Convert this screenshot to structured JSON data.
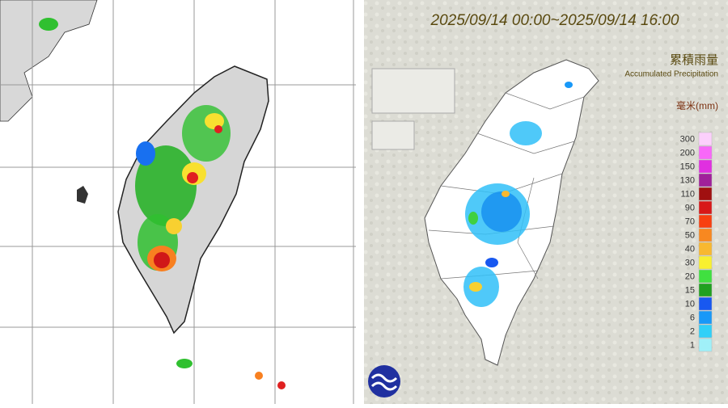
{
  "right_panel": {
    "title": "2025/09/14 00:00~2025/09/14 16:00",
    "legend_title": "累積雨量",
    "legend_subtitle": "Accumulated Precipitation",
    "unit": "毫米(mm)",
    "legend": [
      {
        "label": "300",
        "color": "#fcd0fc"
      },
      {
        "label": "200",
        "color": "#f868f8"
      },
      {
        "label": "150",
        "color": "#e030e0"
      },
      {
        "label": "130",
        "color": "#a0209a"
      },
      {
        "label": "110",
        "color": "#a01010"
      },
      {
        "label": "90",
        "color": "#d81818"
      },
      {
        "label": "70",
        "color": "#f84010"
      },
      {
        "label": "50",
        "color": "#f88820"
      },
      {
        "label": "40",
        "color": "#f8b830"
      },
      {
        "label": "30",
        "color": "#f8f030"
      },
      {
        "label": "20",
        "color": "#40e040"
      },
      {
        "label": "15",
        "color": "#20a020"
      },
      {
        "label": "10",
        "color": "#1858f0"
      },
      {
        "label": "6",
        "color": "#1898f8"
      },
      {
        "label": "2",
        "color": "#30d0f8"
      },
      {
        "label": "1",
        "color": "#a0f0f8"
      }
    ]
  }
}
